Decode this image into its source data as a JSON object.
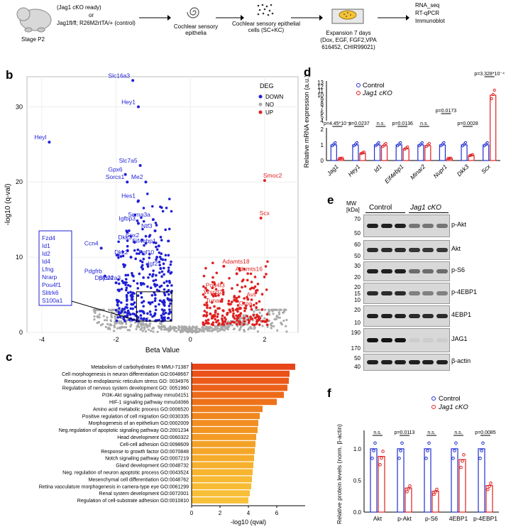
{
  "panel_a": {
    "mouse_label": "Stage P2",
    "genotype_line1": "(Jag1 cKO ready)",
    "or": "or",
    "genotype_line2": "Jag1fl/fl; R26M2rtTA/+ (control)",
    "step1": "Cochlear sensory epithelia",
    "step2": "Cochlear sensory epithelial cells (SC+KC)",
    "step3_title": "Expansion 7 days",
    "step3_detail": "(Dox, EGF, FGF2,VPA 616452, CHIR99021)",
    "step4_line1": "RNA_seq",
    "step4_line2": "RT-qPCR",
    "step4_line3": "Immunoblot"
  },
  "panel_letters": {
    "b": "b",
    "c": "c",
    "d": "d",
    "e": "e",
    "f": "f"
  },
  "chart_data": [
    {
      "id": "volcano",
      "type": "scatter",
      "xlabel": "Beta Value",
      "ylabel": "-log10 (q-val)",
      "xlim": [
        -4.4,
        2.9
      ],
      "ylim": [
        0,
        34
      ],
      "xticks": [
        -4,
        -2,
        0,
        2
      ],
      "yticks": [
        0,
        10,
        20,
        30
      ],
      "legend_title": "DEG",
      "legend": [
        {
          "name": "DOWN",
          "color": "#1f1fd6"
        },
        {
          "name": "NO",
          "color": "#aaaaaa"
        },
        {
          "name": "UP",
          "color": "#e02020"
        }
      ],
      "labeled_points": [
        {
          "label": "Slc16a3",
          "x": -1.55,
          "y": 33.5,
          "cls": "DOWN"
        },
        {
          "label": "Hey1",
          "x": -1.4,
          "y": 30.0,
          "cls": "DOWN"
        },
        {
          "label": "Heyl",
          "x": -3.8,
          "y": 25.3,
          "cls": "DOWN"
        },
        {
          "label": "Slc7a5",
          "x": -1.35,
          "y": 22.2,
          "cls": "DOWN"
        },
        {
          "label": "Me2",
          "x": -1.2,
          "y": 20.0,
          "cls": "DOWN"
        },
        {
          "label": "Gpx6",
          "x": -1.75,
          "y": 21.0,
          "cls": "DOWN"
        },
        {
          "label": "Sorcs1",
          "x": -1.7,
          "y": 20.0,
          "cls": "DOWN"
        },
        {
          "label": "Hes1",
          "x": -1.4,
          "y": 17.5,
          "cls": "DOWN"
        },
        {
          "label": "Igfbp3",
          "x": -1.4,
          "y": 14.5,
          "cls": "DOWN"
        },
        {
          "label": "Sema3a",
          "x": -1.0,
          "y": 15.0,
          "cls": "DOWN"
        },
        {
          "label": "Ntf3",
          "x": -0.95,
          "y": 13.5,
          "cls": "DOWN"
        },
        {
          "label": "Sox2",
          "x": -1.3,
          "y": 12.3,
          "cls": "DOWN"
        },
        {
          "label": "Dkk3",
          "x": -1.5,
          "y": 12.0,
          "cls": "DOWN"
        },
        {
          "label": "Eif4ebp1",
          "x": -0.85,
          "y": 11.5,
          "cls": "DOWN"
        },
        {
          "label": "Ccn4",
          "x": -2.4,
          "y": 11.2,
          "cls": "DOWN"
        },
        {
          "label": "Dkk2",
          "x": -1.6,
          "y": 10.0,
          "cls": "DOWN"
        },
        {
          "label": "Fgf10",
          "x": -0.9,
          "y": 10.0,
          "cls": "DOWN"
        },
        {
          "label": "Igf2",
          "x": -0.8,
          "y": 8.5,
          "cls": "DOWN"
        },
        {
          "label": "Pdgfrb",
          "x": -2.3,
          "y": 7.5,
          "cls": "DOWN"
        },
        {
          "label": "Dpysl4",
          "x": -2.0,
          "y": 6.6,
          "cls": "DOWN"
        },
        {
          "label": "Slc22a3",
          "x": -1.8,
          "y": 6.6,
          "cls": "DOWN"
        },
        {
          "label": "Smoc2",
          "x": 2.0,
          "y": 20.2,
          "cls": "UP"
        },
        {
          "label": "Scx",
          "x": 1.9,
          "y": 15.2,
          "cls": "UP"
        },
        {
          "label": "Adamts18",
          "x": 0.9,
          "y": 8.8,
          "cls": "UP"
        },
        {
          "label": "Adamts16",
          "x": 1.25,
          "y": 7.8,
          "cls": "UP"
        },
        {
          "label": "Pou4f3",
          "x": 0.45,
          "y": 5.6,
          "cls": "UP"
        },
        {
          "label": "Wscd2",
          "x": 0.4,
          "y": 4.7,
          "cls": "UP"
        },
        {
          "label": "Avil",
          "x": 1.55,
          "y": 4.4,
          "cls": "UP"
        },
        {
          "label": "Tunar",
          "x": 0.45,
          "y": 3.6,
          "cls": "UP"
        },
        {
          "label": "Otoa",
          "x": 1.35,
          "y": 3.2,
          "cls": "UP"
        }
      ],
      "boxed_genes": [
        "Fzd4",
        "Id1",
        "Id2",
        "Id4",
        "Lfng",
        "Nrarp",
        "Pou4f1",
        "Slitrk6",
        "S100a1"
      ]
    },
    {
      "id": "go_bar",
      "type": "bar",
      "orientation": "horizontal",
      "xlabel": "-log10 (qval)",
      "xlim": [
        0,
        8
      ],
      "xticks": [
        0,
        2,
        4,
        6
      ],
      "categories": [
        "Metabolism of carbohydrates R-MMU-71387",
        "Cell morphogenesis in neuron differentiation GO:0048667",
        "Response to endoplasmic reticulum stress GO: 0034976",
        "Regulation of nervous system development GO: 0051960",
        "PI3K-Akt signaling pathway mmu04151",
        "HIF-1 signaling pathway mmu04066",
        "Amino acid metabolic process GO:0006520",
        "Positive regulation of cell migration GO:0030335",
        "Morphogenesis of an epithelium GO:0002009",
        "Neg.regulation of apoptotic signaling pathway GO:2001234",
        "Head development GO:0060322",
        "Cell-cell adhesion GO:0098609",
        "Response to growth factor GO:0070848",
        "Notch signaling pathway GO:0007219",
        "Gland development GO:0048732",
        "Neg. regulation of neuron apoptotic process GO:0043524",
        "Mesenchymal cell differentiation GO:0048762",
        "Retina vasculature morphogenesis in camera-type eye GO:0061299",
        "Renal system development GO:0072001",
        "Regulation of cell-substrate adhesion GO:0010810"
      ],
      "values": [
        7.3,
        6.9,
        6.85,
        6.75,
        6.5,
        6.0,
        5.0,
        4.8,
        4.7,
        4.65,
        4.55,
        4.5,
        4.45,
        4.4,
        4.35,
        4.3,
        4.25,
        4.2,
        4.1,
        4.0
      ],
      "colors": [
        "#e8441a",
        "#ea5219",
        "#eb5a19",
        "#ec6119",
        "#ed6a19",
        "#ee7219",
        "#f07f1e",
        "#f1871f",
        "#f28e21",
        "#f39523",
        "#f49b25",
        "#f4a127",
        "#f5a629",
        "#f6ab2b",
        "#f6b02d",
        "#f7b42f",
        "#f7b832",
        "#f8bb34",
        "#f8be37",
        "#f9c13a"
      ]
    },
    {
      "id": "qpcr",
      "type": "bar",
      "ylabel": "Relative mRNA expression (a.u.)",
      "legend": [
        {
          "name": "Control",
          "color": "#2030d0"
        },
        {
          "name": "Jag1 cKO",
          "color": "#e02020"
        }
      ],
      "y_lower_ticks": [
        0,
        1,
        2
      ],
      "y_upper_ticks": [
        4,
        5,
        6,
        7,
        8,
        9,
        10,
        11,
        12,
        13
      ],
      "categories": [
        "Jag1",
        "Hey1",
        "Id1",
        "Eif4ebp1",
        "Minar2",
        "Nupr1",
        "Dkk3",
        "Scx"
      ],
      "series": [
        {
          "name": "Control",
          "values": [
            1.0,
            1.0,
            1.0,
            1.0,
            1.0,
            1.0,
            1.0,
            1.0
          ]
        },
        {
          "name": "Jag1 cKO",
          "values": [
            0.1,
            0.45,
            0.95,
            0.75,
            0.95,
            0.1,
            0.3,
            10.0
          ]
        }
      ],
      "pvalues": [
        "p=4.45*10⁻⁶",
        "p=0.0237",
        "n.s.",
        "p=0.0136",
        "n.s.",
        "p=0.0173",
        "p=0.0028",
        "p=3.328*10⁻⁴"
      ]
    },
    {
      "id": "protein",
      "type": "bar",
      "ylabel": "Relative protein levels (norm. β-actin)",
      "legend": [
        {
          "name": "Control",
          "color": "#2030d0"
        },
        {
          "name": "Jag1 cKO",
          "color": "#e02020"
        }
      ],
      "categories": [
        "Akt",
        "p-Akt",
        "p-S6",
        "4EBP1",
        "p-4EBP1"
      ],
      "series": [
        {
          "name": "Control",
          "values": [
            1.0,
            1.0,
            1.0,
            1.0,
            1.0
          ]
        },
        {
          "name": "Jag1 cKO",
          "values": [
            0.88,
            0.38,
            0.33,
            0.83,
            0.42
          ]
        }
      ],
      "pvalues": [
        "n.s.",
        "p=0.0113",
        "n.s.",
        "n.s.",
        "p=0.0085"
      ]
    }
  ],
  "panel_e": {
    "mw_label": "MW\n[kDa]",
    "group_control": "Control",
    "group_cko": "Jag1 cKO",
    "rows": [
      {
        "label": "p-Akt",
        "mw": [
          "70",
          "50"
        ],
        "ctrl": 0.85,
        "cko": 0.45
      },
      {
        "label": "Akt",
        "mw": [
          "60",
          "50"
        ],
        "ctrl": 0.8,
        "cko": 0.75
      },
      {
        "label": "p-S6",
        "mw": [
          "30",
          "20"
        ],
        "ctrl": 0.85,
        "cko": 0.5
      },
      {
        "label": "p-4EBP1",
        "mw": [
          "20",
          "15",
          "10"
        ],
        "ctrl": 0.8,
        "cko": 0.4
      },
      {
        "label": "4EBP1",
        "mw": [
          "20",
          "10"
        ],
        "ctrl": 0.85,
        "cko": 0.8
      },
      {
        "label": "JAG1",
        "mw": [
          "190",
          "170"
        ],
        "ctrl": 0.9,
        "cko": 0.05
      },
      {
        "label": "β-actin",
        "mw": [
          "50",
          "40"
        ],
        "ctrl": 0.85,
        "cko": 0.85
      }
    ]
  }
}
